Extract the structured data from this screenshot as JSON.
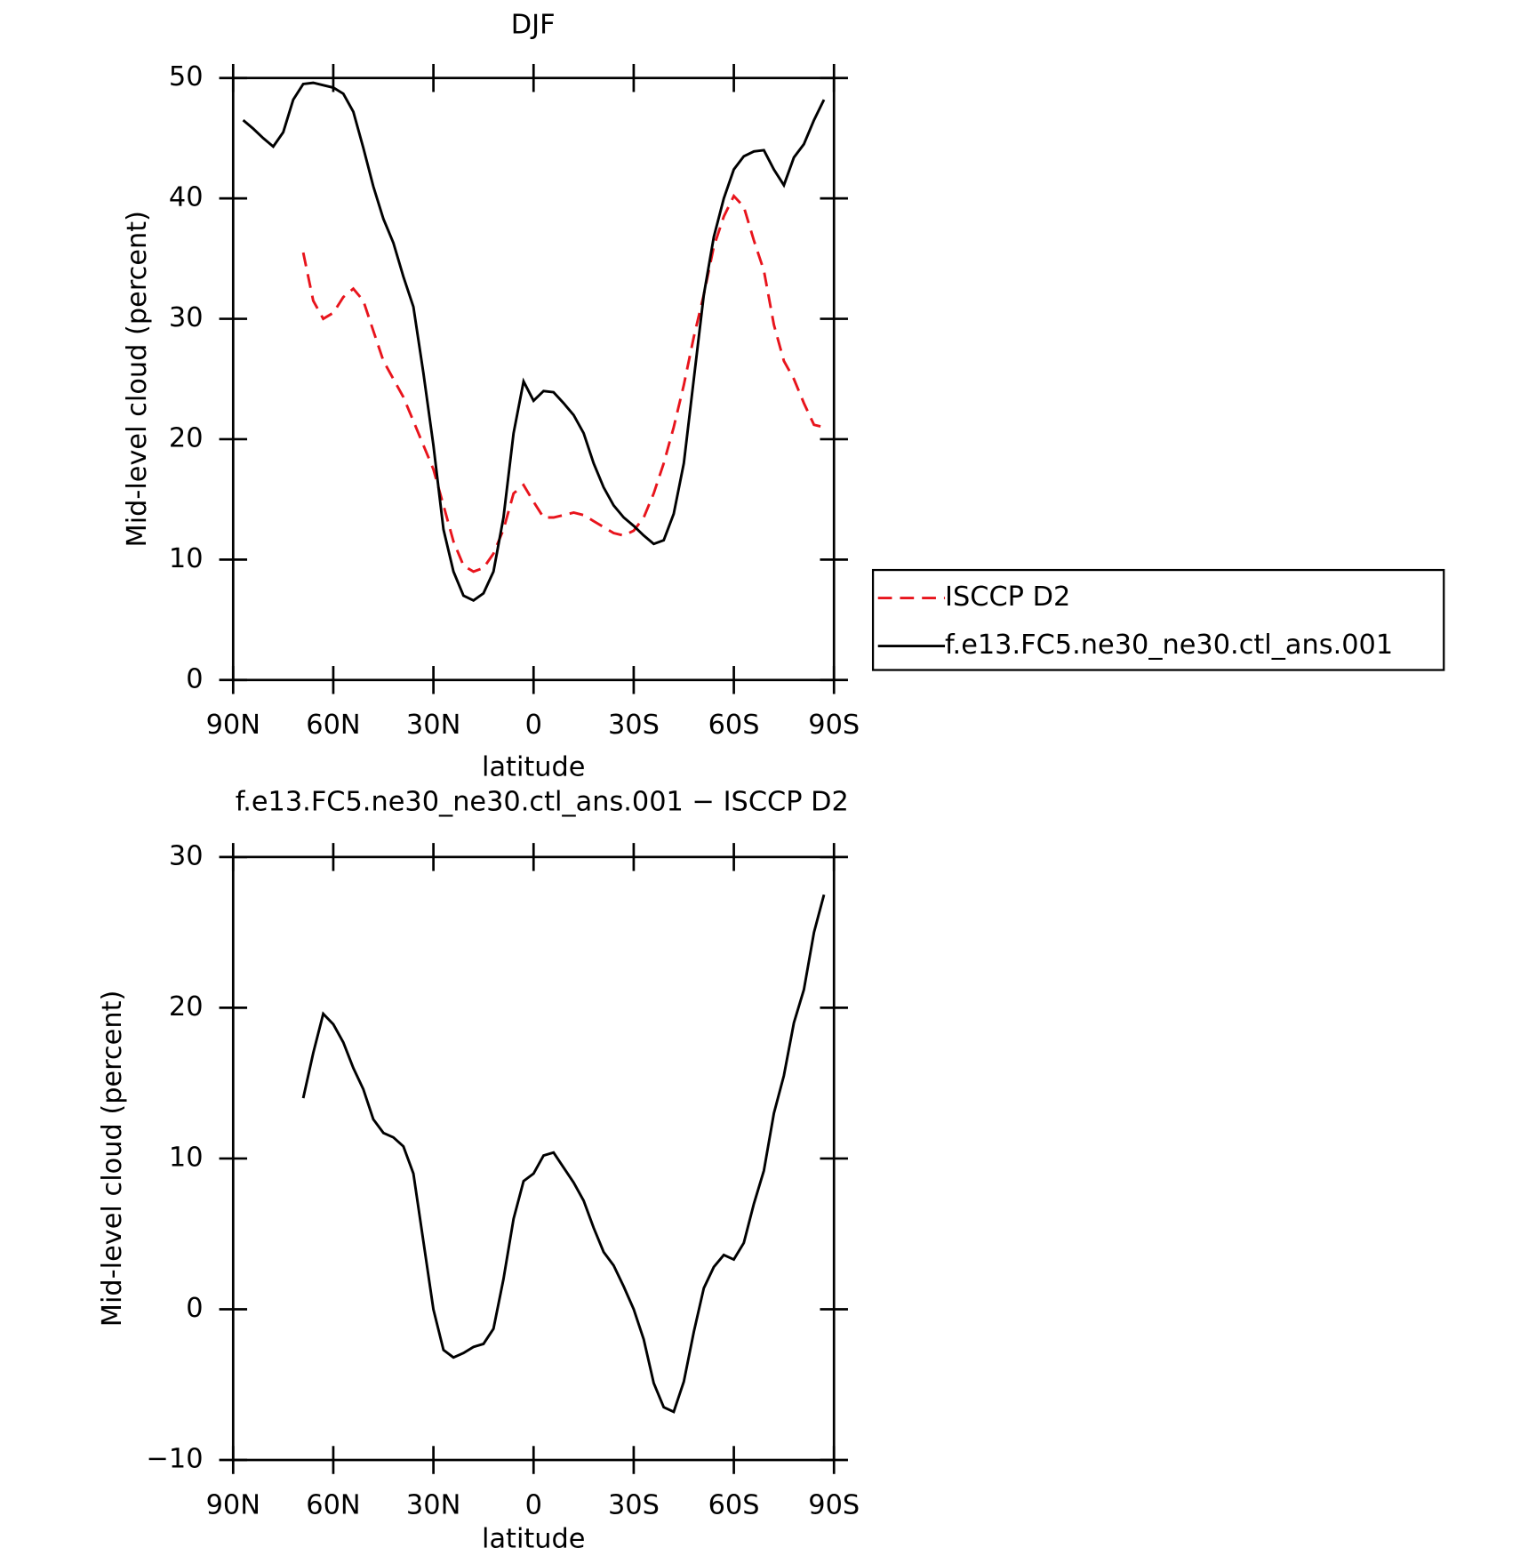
{
  "chart_data": [
    {
      "type": "line",
      "title": "DJF",
      "xlabel": "latitude",
      "ylabel": "Mid-level cloud (percent)",
      "x": [
        87,
        84,
        81,
        78,
        75,
        72,
        69,
        66,
        63,
        60,
        57,
        54,
        51,
        48,
        45,
        42,
        39,
        36,
        33,
        30,
        27,
        24,
        21,
        18,
        15,
        12,
        9,
        6,
        3,
        0,
        -3,
        -6,
        -9,
        -12,
        -15,
        -18,
        -21,
        -24,
        -27,
        -30,
        -33,
        -36,
        -39,
        -42,
        -45,
        -48,
        -51,
        -54,
        -57,
        -60,
        -63,
        -66,
        -69,
        -72,
        -75,
        -78,
        -81,
        -84,
        -87
      ],
      "series": [
        {
          "name": "ISCCP D2",
          "color": "#e8141c",
          "dash": true,
          "values": [
            null,
            null,
            null,
            null,
            null,
            null,
            35.5,
            31.5,
            30.0,
            30.5,
            31.8,
            32.5,
            31.5,
            29.0,
            26.5,
            25.0,
            23.5,
            21.5,
            19.5,
            17.5,
            14.5,
            11.5,
            9.5,
            9.0,
            9.3,
            10.5,
            12.5,
            15.5,
            16.2,
            14.8,
            13.5,
            13.5,
            13.7,
            13.9,
            13.7,
            13.2,
            12.7,
            12.2,
            12.0,
            12.4,
            13.5,
            15.5,
            18.0,
            21.0,
            24.5,
            28.5,
            32.0,
            36.0,
            38.5,
            40.2,
            39.3,
            36.5,
            34.0,
            29.5,
            26.5,
            25.0,
            23.0,
            21.2,
            21.0
          ]
        },
        {
          "name": "f.e13.FC5.ne30_ne30.ctl_ans.001",
          "color": "#000000",
          "dash": false,
          "values": [
            46.5,
            45.8,
            45.0,
            44.3,
            45.5,
            48.2,
            49.5,
            49.6,
            49.4,
            49.2,
            48.7,
            47.2,
            44.2,
            41.0,
            38.3,
            36.3,
            33.5,
            31.0,
            25.5,
            19.5,
            12.5,
            9.0,
            7.0,
            6.6,
            7.2,
            9.0,
            13.5,
            20.5,
            24.8,
            23.2,
            24.0,
            23.9,
            23.0,
            22.0,
            20.5,
            18.0,
            16.0,
            14.5,
            13.5,
            12.8,
            12.0,
            11.3,
            11.6,
            13.8,
            18.0,
            25.0,
            32.0,
            36.8,
            40.0,
            42.4,
            43.5,
            43.9,
            44.0,
            42.4,
            41.1,
            43.4,
            44.5,
            46.5,
            48.2
          ]
        }
      ],
      "xlim": [
        90,
        -90
      ],
      "xticks": [
        {
          "value": 90,
          "label": "90N"
        },
        {
          "value": 60,
          "label": "60N"
        },
        {
          "value": 30,
          "label": "30N"
        },
        0,
        {
          "value": -30,
          "label": "30S"
        },
        {
          "value": -60,
          "label": "60S"
        },
        {
          "value": -90,
          "label": "90S"
        }
      ],
      "ylim": [
        0,
        50
      ],
      "yticks": [
        0,
        10,
        20,
        30,
        40,
        50
      ],
      "legend": "right"
    },
    {
      "type": "line",
      "title": "f.e13.FC5.ne30_ne30.ctl_ans.001 − ISCCP D2",
      "xlabel": "latitude",
      "ylabel": "Mid-level cloud (percent)",
      "x": [
        87,
        84,
        81,
        78,
        75,
        72,
        69,
        66,
        63,
        60,
        57,
        54,
        51,
        48,
        45,
        42,
        39,
        36,
        33,
        30,
        27,
        24,
        21,
        18,
        15,
        12,
        9,
        6,
        3,
        0,
        -3,
        -6,
        -9,
        -12,
        -15,
        -18,
        -21,
        -24,
        -27,
        -30,
        -33,
        -36,
        -39,
        -42,
        -45,
        -48,
        -51,
        -54,
        -57,
        -60,
        -63,
        -66,
        -69,
        -72,
        -75,
        -78,
        -81,
        -84,
        -87
      ],
      "series": [
        {
          "color": "#000000",
          "dash": false,
          "values": [
            null,
            null,
            null,
            null,
            null,
            null,
            14.0,
            17.0,
            19.6,
            18.9,
            17.7,
            16.0,
            14.6,
            12.6,
            11.7,
            11.4,
            10.8,
            9.0,
            4.5,
            0.0,
            -2.7,
            -3.2,
            -2.9,
            -2.5,
            -2.3,
            -1.3,
            2.0,
            6.0,
            8.5,
            9.0,
            10.2,
            10.4,
            9.4,
            8.4,
            7.2,
            5.4,
            3.8,
            2.9,
            1.5,
            0.0,
            -2.0,
            -4.9,
            -6.5,
            -6.8,
            -4.8,
            -1.5,
            1.4,
            2.8,
            3.6,
            3.3,
            4.4,
            7.0,
            9.2,
            13.0,
            15.5,
            19.0,
            21.2,
            25.0,
            27.5
          ]
        }
      ],
      "xlim": [
        90,
        -90
      ],
      "xticks": [
        {
          "value": 90,
          "label": "90N"
        },
        {
          "value": 60,
          "label": "60N"
        },
        {
          "value": 30,
          "label": "30N"
        },
        0,
        {
          "value": -30,
          "label": "30S"
        },
        {
          "value": -60,
          "label": "60S"
        },
        {
          "value": -90,
          "label": "90S"
        }
      ],
      "ylim": [
        -10,
        30
      ],
      "yticks": [
        {
          "value": -10,
          "label": "−10"
        },
        0,
        10,
        20,
        30
      ]
    }
  ]
}
